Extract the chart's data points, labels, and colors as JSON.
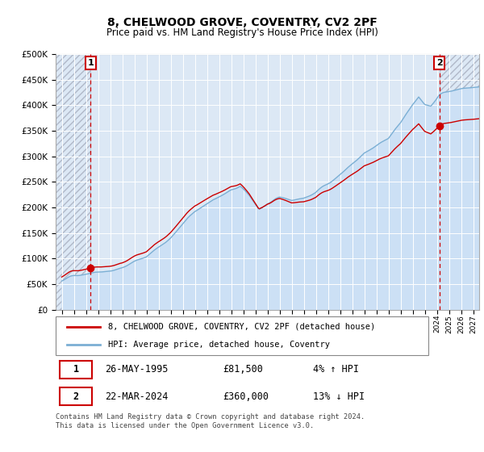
{
  "title": "8, CHELWOOD GROVE, COVENTRY, CV2 2PF",
  "subtitle": "Price paid vs. HM Land Registry's House Price Index (HPI)",
  "sale1_year": 1995.38,
  "sale1_price": 81500,
  "sale2_year": 2024.21,
  "sale2_price": 360000,
  "ylim_min": 0,
  "ylim_max": 500000,
  "ytick_step": 50000,
  "hpi_line_color": "#7bafd4",
  "hpi_fill_color": "#cce0f5",
  "price_line_color": "#cc0000",
  "bg_color": "#dce8f5",
  "fig_bg_color": "#ffffff",
  "hatch_color": "#b0b8c8",
  "grid_color": "#ffffff",
  "dashed_color": "#cc0000",
  "marker_color": "#cc0000",
  "legend_label1": "8, CHELWOOD GROVE, COVENTRY, CV2 2PF (detached house)",
  "legend_label2": "HPI: Average price, detached house, Coventry",
  "table_row1": [
    "1",
    "26-MAY-1995",
    "£81,500",
    "4% ↑ HPI"
  ],
  "table_row2": [
    "2",
    "22-MAR-2024",
    "£360,000",
    "13% ↓ HPI"
  ],
  "footnote": "Contains HM Land Registry data © Crown copyright and database right 2024.\nThis data is licensed under the Open Government Licence v3.0.",
  "xlim_min": 1992.5,
  "xlim_max": 2027.5
}
